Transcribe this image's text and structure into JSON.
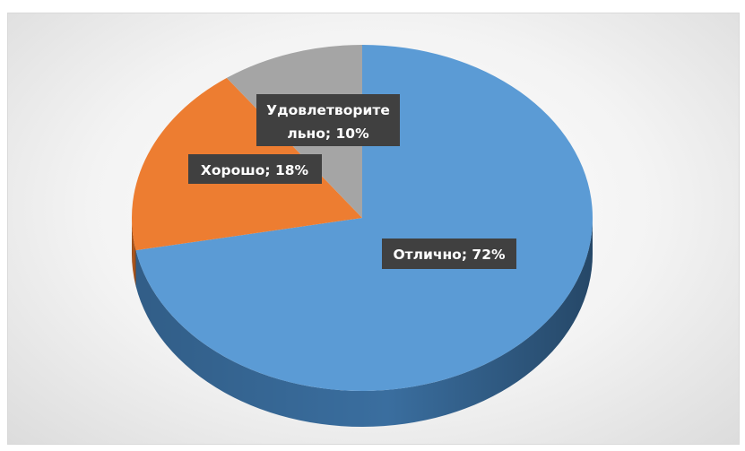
{
  "chart_data": {
    "type": "pie",
    "title": "",
    "slices": [
      {
        "label": "Отлично",
        "value": 72,
        "color": "#5b9bd5",
        "side_color": "#3a6e9f",
        "label_text": "Отлично; 72%"
      },
      {
        "label": "Хорошо",
        "value": 18,
        "color": "#ed7d31",
        "side_color": "#b45a1e",
        "label_text": "Хорошо; 18%"
      },
      {
        "label": "Удовлетворительно",
        "value": 10,
        "color": "#a5a5a5",
        "side_color": "#7a7a7a",
        "label_lines": [
          "Удовлетворите",
          "льно; 10%"
        ]
      }
    ],
    "style": "3d",
    "legend": "none"
  }
}
